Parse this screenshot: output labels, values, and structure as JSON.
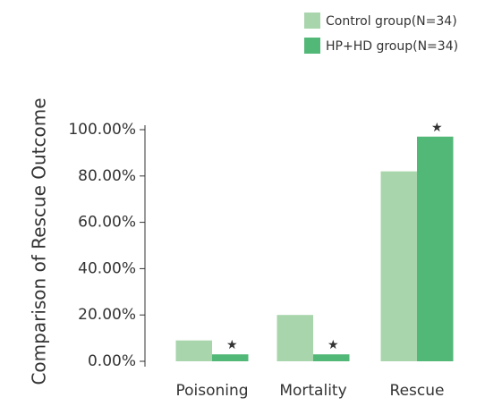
{
  "chart_data": {
    "type": "bar",
    "ylabel": "Comparison of Rescue Outcome",
    "categories": [
      "Poisoning",
      "Mortality",
      "Rescue"
    ],
    "series": [
      {
        "name": "Control group(N=34)",
        "color": "#a8d5ab",
        "values": [
          9,
          20,
          82
        ]
      },
      {
        "name": "HP+HD group(N=34)",
        "color": "#52b878",
        "values": [
          3,
          3,
          97
        ]
      }
    ],
    "significance_marks": [
      "★",
      "★",
      "★"
    ],
    "ylim": [
      0,
      100
    ],
    "yticks": [
      {
        "value": 0,
        "label": "0.00%"
      },
      {
        "value": 20,
        "label": "20.00%"
      },
      {
        "value": 40,
        "label": "40.00%"
      },
      {
        "value": 60,
        "label": "60.00%"
      },
      {
        "value": 80,
        "label": "80.00%"
      },
      {
        "value": 100,
        "label": "100.00%"
      }
    ],
    "legend": "top-right"
  }
}
